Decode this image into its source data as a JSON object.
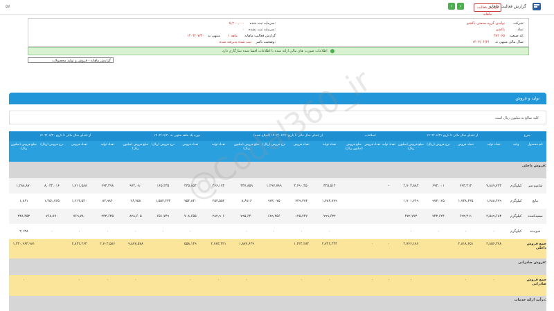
{
  "topbar": {
    "page_number": "۵۷",
    "title": "گزارش فعالیت ماهانه",
    "report_button": "گزارش فعالیت ماهانه",
    "prev_arrow": "‹",
    "next_arrow": "›"
  },
  "company": {
    "company_label": "شرکت:",
    "company_value": "تولیدی گروه صنعتی پاکشو",
    "symbol_label": "نماد:",
    "symbol_value": "پاکشو",
    "code_label": "کد صنعت:",
    "code_value": "۳۸۲۰۶۵",
    "period_label": "سال مالی منتهی به:",
    "period_value": "۱۴۰۳/۰۶/۳۱",
    "capital_label": "سرمایه ثبت شده:",
    "capital_value": "۵,۲۰۰,۰۰۰",
    "unreg_capital_label": "سرمایه ثبت نشده:",
    "unreg_capital_value": "۰",
    "report_label": "گزارش فعالیت ماهانه",
    "month_label": "۱ ماهه",
    "ending_label": "منتهی به",
    "ending_value": "۱۴۰۳/۰۷/۳۰",
    "status_label": "وضعیت ناشر:",
    "status_value": "ثبت شده پذیرفته شده"
  },
  "notice": "اطلاعات صورت های مالی ارائه شده با اطلاعات افشا شده سازگاری دارد",
  "select": {
    "value": "گزارش ماهانه - فروش و تولید محصولات"
  },
  "panel": {
    "title": "تولید و فروش",
    "note": "کلیه مبالغ به میلیون ریال است"
  },
  "watermark": "@Codal360_ir",
  "table": {
    "groups": [
      "شرح",
      "از ابتدای سال مالی تا تاریخ ۱۴۰۳/۰۶/۳۱",
      "اصلاحات",
      "از ابتدای سال مالی تا تاریخ ۱۴۰۳/۰۶/۳۱ (اصلاح شده)",
      "دوره یک ماهه منتهی به ۱۴۰۳/۰۷/۳۰",
      "از ابتدای سال مالی تا تاریخ ۱۴۰۳/۰۷/۳۰"
    ],
    "headers": [
      "نام محصول",
      "واحد",
      "تعداد تولید",
      "تعداد فروش",
      "نرخ فروش (ریال)",
      "مبلغ فروش (میلیون ریال)",
      "تعداد تولید",
      "تعداد فروش",
      "مبلغ فروش (میلیون ریال)",
      "تعداد تولید",
      "تعداد فروش",
      "نرخ فروش (ریال)",
      "مبلغ فروش (میلیون ریال)",
      "تعداد تولید",
      "تعداد فروش",
      "نرخ فروش (ریال)",
      "مبلغ فروش (میلیون ریال)",
      "تعداد تولید",
      "تعداد فروش",
      "نرخ فروش (ریال)",
      "مبلغ فروش (میلیون ریال)"
    ],
    "group_domestic": "فروش داخلی:",
    "rows": [
      [
        "شامپو سر",
        "کیلوگرم",
        "۷,۸۸۹,۷۲۳",
        "۶۹۳,۳۱۴",
        "۶۹۳,۰۰۱",
        "۲,۷۰۳,۸۸۳",
        "-",
        "",
        "",
        "۳۲۵,۵۱۴",
        "۳,۶۹۰,۴۵۰",
        "۱,۲۹۷,۷۸۹",
        "۳۴۷,۸۵۹",
        "۳۶۶,۱۷۴",
        "۴۳۵,۸۵۳",
        "۱۶۵,۲۳۵",
        "۹۷۳,۰۸۰",
        "۶۹۳,۳۹۸",
        "۱,۷۱۱,۵۸۸",
        "۸,۰۳۴,۰۱۶",
        "۱,۲۸۸,۸۷۰"
      ],
      [
        "مایع",
        "کیلوگرم",
        "۱,۷۸۸,۴۷۹",
        "۱,۷۴۸,۶۳۵",
        "۹۷۳,۰۲۵",
        "۱,۷۰۱,۲۶۹",
        "",
        "",
        "",
        "۱,۳۸۴,۷۷۹",
        "۷۴۹,۳۷۳",
        "۹۷۳,۰۷۵",
        "۸,۶۸۱۶",
        "۲۵۳,۵۵۲",
        "۷۵۴,۸۴۰",
        "۱,۵۵۳,۶۳۴",
        "۲۶,۷۵۸",
        "۸۴,۹۸۶",
        "۱,۲۱۴,۵۴۰",
        "۱,۴۵۱,۷۶۵",
        "۱,۸۶۱"
      ],
      [
        "سفیدکننده",
        "کیلوگرم",
        "۲,۵۸۹,۶۸۳",
        "۶۹۳,۳۱۱",
        "۷۴۳,۶۲۴",
        "۴۷۲,۷۷۳",
        "",
        "",
        "",
        "۷۹۹,۶۳۲",
        "۱۲۵,۷۴۷",
        "۶۸۹,۴۵۶",
        "۷۹۵,۶۴۰",
        "۲۸۲,۹۰۶",
        "۷۰۸,۶۵۵",
        "۶۵۱,۷۴۹",
        "۸۲۸,۶۰۵",
        "۲۴۳,۶۳۵",
        "۷۶۹,۷۸۰",
        "۷۶۸,۷۷۰",
        "۳۴۸,۴۵۳"
      ],
      [
        "شوینده",
        "کیلوگرم",
        "۰",
        "۰",
        "۰",
        "۰",
        "",
        "",
        "",
        "۰",
        "۰",
        "۰",
        "۰",
        "",
        "۰",
        "۰",
        "۰",
        "۰",
        "۰",
        "۰",
        "۲,۱۳۸"
      ]
    ],
    "total_domestic": [
      "جمع فروش داخلی",
      "",
      "۲,۸۵۶,۳۷۸",
      "۲,۸۱۸,۶۵۱",
      "",
      "۲,۷۶۶,۱۸۶",
      "۰",
      "۰",
      "",
      "۲,۷۴۲,۳۴۳",
      "۱,۲۲۴,۲۸۴",
      "",
      "۱,۸۷۷,۶۳۹",
      "۲,۷۸۳,۳۲۱",
      "۵۵۸,۱۴۹",
      "",
      "۹,۸۷۷,۵۷۸",
      "۲,۷۰۴,۵۸۶",
      "۲,۸۴۲,۲۶۴",
      "",
      "۱,۳۳۰,۹۶۳,۹۸۱"
    ],
    "group_export": "فروش صادراتی:",
    "total_export": [
      "جمع فروش صادراتی",
      "",
      "۰",
      "۰",
      "",
      "۰",
      "۰",
      "۰",
      "",
      "۰",
      "۰",
      "",
      "۰",
      "۰",
      "۰",
      "",
      "۰",
      "۰",
      "۰",
      "",
      "۰"
    ],
    "group_services": "درآمد ارائه خدمات:"
  }
}
